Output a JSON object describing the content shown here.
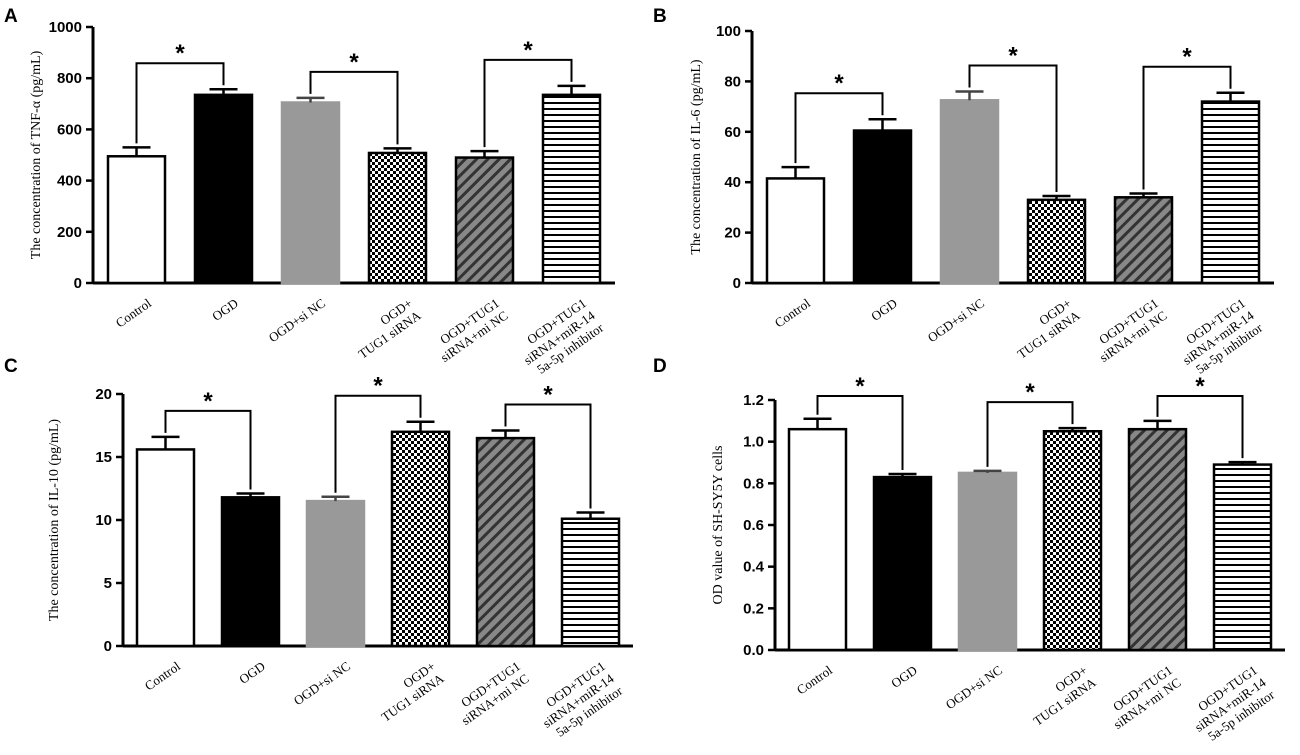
{
  "chart_data": [
    {
      "panel": "A",
      "type": "bar",
      "ylabel": "The concentration of TNF-α (pg/mL)",
      "ylim": [
        0,
        1000
      ],
      "yticks": [
        "0",
        "200",
        "400",
        "600",
        "800",
        "1000"
      ],
      "categories": [
        [
          "Control"
        ],
        [
          "OGD"
        ],
        [
          "OGD+si NC"
        ],
        [
          "OGD+",
          "TUG1 siRNA"
        ],
        [
          "OGD+TUG1",
          "siRNA+mi NC"
        ],
        [
          "OGD+TUG1",
          "siRNA+miR-14",
          "5a-5p inhibitor"
        ]
      ],
      "values": [
        495,
        735,
        705,
        508,
        490,
        735
      ],
      "errors": [
        35,
        22,
        18,
        18,
        25,
        35
      ],
      "significance": [
        {
          "from": 0,
          "to": 1,
          "label": "*"
        },
        {
          "from": 2,
          "to": 3,
          "label": "*"
        },
        {
          "from": 4,
          "to": 5,
          "label": "*"
        }
      ]
    },
    {
      "panel": "B",
      "type": "bar",
      "ylabel": "The concentration of IL-6 (pg/mL)",
      "ylim": [
        0,
        100
      ],
      "yticks": [
        "0",
        "20",
        "40",
        "60",
        "80",
        "100"
      ],
      "categories": [
        [
          "Control"
        ],
        [
          "OGD"
        ],
        [
          "OGD+si NC"
        ],
        [
          "OGD+",
          "TUG1 siRNA"
        ],
        [
          "OGD+TUG1",
          "siRNA+mi NC"
        ],
        [
          "OGD+TUG1",
          "siRNA+miR-14",
          "5a-5p inhibitor"
        ]
      ],
      "values": [
        41.5,
        60.5,
        72.5,
        33,
        34,
        72
      ],
      "errors": [
        4.5,
        4.5,
        3.5,
        1.5,
        1.5,
        3.5
      ],
      "significance": [
        {
          "from": 0,
          "to": 1,
          "label": "*"
        },
        {
          "from": 2,
          "to": 3,
          "label": "*"
        },
        {
          "from": 4,
          "to": 5,
          "label": "*"
        }
      ]
    },
    {
      "panel": "C",
      "type": "bar",
      "ylabel": "The concentration of IL-10 (pg/mL)",
      "ylim": [
        0,
        20
      ],
      "yticks": [
        "0",
        "5",
        "10",
        "15",
        "20"
      ],
      "categories": [
        [
          "Control"
        ],
        [
          "OGD"
        ],
        [
          "OGD+si NC"
        ],
        [
          "OGD+",
          "TUG1 siRNA"
        ],
        [
          "OGD+TUG1",
          "siRNA+mi NC"
        ],
        [
          "OGD+TUG1",
          "siRNA+miR-14",
          "5a-5p inhibitor"
        ]
      ],
      "values": [
        15.6,
        11.8,
        11.5,
        17,
        16.5,
        10.1
      ],
      "errors": [
        1.0,
        0.3,
        0.35,
        0.8,
        0.6,
        0.5
      ],
      "significance": [
        {
          "from": 0,
          "to": 1,
          "label": "*"
        },
        {
          "from": 2,
          "to": 3,
          "label": "*"
        },
        {
          "from": 4,
          "to": 5,
          "label": "*"
        }
      ]
    },
    {
      "panel": "D",
      "type": "bar",
      "ylabel": "OD value of SH-SY5Y cells",
      "ylim": [
        0,
        1.2
      ],
      "yticks": [
        "0.0",
        "0.2",
        "0.4",
        "0.6",
        "0.8",
        "1.0",
        "1.2"
      ],
      "categories": [
        [
          "Control"
        ],
        [
          "OGD"
        ],
        [
          "OGD+si NC"
        ],
        [
          "OGD+",
          "TUG1 siRNA"
        ],
        [
          "OGD+TUG1",
          "siRNA+mi NC"
        ],
        [
          "OGD+TUG1",
          "siRNA+miR-14",
          "5a-5p inhibitor"
        ]
      ],
      "values": [
        1.06,
        0.83,
        0.85,
        1.05,
        1.06,
        0.89
      ],
      "errors": [
        0.05,
        0.015,
        0.01,
        0.015,
        0.04,
        0.012
      ],
      "significance": [
        {
          "from": 0,
          "to": 1,
          "label": "*"
        },
        {
          "from": 2,
          "to": 3,
          "label": "*"
        },
        {
          "from": 4,
          "to": 5,
          "label": "*"
        }
      ]
    }
  ],
  "colors": {
    "control_fill": "#ffffff",
    "ogd_fill": "#000000",
    "sinc_fill": "#999999",
    "axis": "#000000"
  },
  "fill_styles": [
    "white",
    "black",
    "gray",
    "checker",
    "diagonal",
    "horizontal"
  ]
}
